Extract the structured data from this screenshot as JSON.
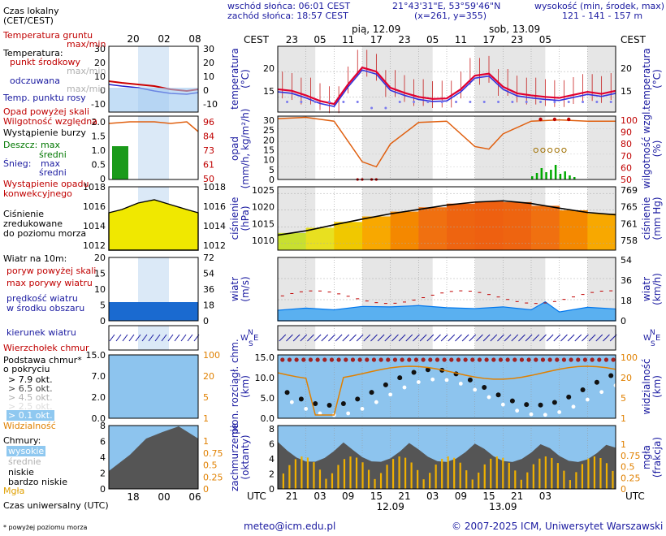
{
  "header": {
    "sunrise": "wschód słońca: 06:01 CEST",
    "sunset": "zachód słońca: 18:57 CEST",
    "coords": "21°43'31\"E, 53°59'46\"N",
    "grid": "(x=261, y=355)",
    "elev_label": "wysokość (min, środek, max)",
    "elev_values": "121 - 141 - 157 m"
  },
  "left_legend": {
    "local_time": "Czas lokalny",
    "local_time_zone": "(CET/CEST)",
    "ground_temp": "Temperatura gruntu",
    "ground_temp_mm": "max/min",
    "temperature": "Temperatura:",
    "mid_point": "punkt środkowy",
    "max_min": "max/min",
    "felt": "odczuwana",
    "felt_mm": "max/min",
    "dew": "Temp. punktu rosy",
    "precip_above": "Opad powyżej skali",
    "humidity": "Wilgotność względna",
    "storm": "Wystąpienie burzy",
    "rain": "Deszcz:",
    "rain_max": "max",
    "rain_mean": "średni",
    "snow": "Śnieg:",
    "snow_max": "max",
    "snow_mean": "średni",
    "conv": "Wystąpienie opadu",
    "conv2": "konwekcyjnego",
    "pressure1": "Ciśnienie",
    "pressure2": "zredukowane",
    "pressure3": "do poziomu morza",
    "wind_at": "Wiatr na 10m:",
    "gust_above": "poryw powyżej skali",
    "gust_max": "max porywy wiatru",
    "wind_speed": "prędkość wiatru",
    "wind_speed2": "w środku obszaru",
    "wind_dir": "kierunek wiatru",
    "shear": "Wierzchołek chmur",
    "cloud_base": "Podstawa chmur*",
    "cloud_cover": "o pokryciu",
    "okt_79": "> 7.9 okt.",
    "okt_65": "> 6.5 okt.",
    "okt_45": "> 4.5 okt.",
    "okt_25": "> 2.5 okt.",
    "okt_01": "> 0.1 okt.",
    "visibility": "Widzialność",
    "clouds": "Chmury:",
    "high": "wysokie",
    "mid": "średnie",
    "low": "niskie",
    "very_low": "bardzo niskie",
    "fog": "Mgła",
    "utc": "Czas uniwersalny (UTC)",
    "footnote": "* powyżej poziomu morza"
  },
  "left_axes": {
    "local_hours": [
      "20",
      "02",
      "08"
    ],
    "utc_hours": [
      "18",
      "00",
      "06"
    ],
    "temp_ticks": [
      "30",
      "20",
      "10",
      "0",
      "-10"
    ],
    "temp_ticks_r": [
      "30",
      "20",
      "10",
      "0",
      "-10"
    ],
    "precip_ticks": [
      "2.0",
      "1.5",
      "1.0",
      "0.5",
      "0"
    ],
    "hum_ticks": [
      "96",
      "84",
      "73",
      "61",
      "50"
    ],
    "pres_ticks": [
      "1018",
      "1016",
      "1014",
      "1012"
    ],
    "pres_ticks_r": [
      "1018",
      "1016",
      "1014",
      "1012"
    ],
    "wind_ticks": [
      "20",
      "15",
      "10",
      "5",
      "0"
    ],
    "wind_ticks_r": [
      "72",
      "54",
      "36",
      "18",
      "0"
    ],
    "cb_ticks": [
      "15.0",
      "7.0",
      "2.0",
      "0.0"
    ],
    "vis_ticks": [
      "100",
      "20",
      "5",
      "1"
    ],
    "cl_ticks": [
      "8",
      "6",
      "4",
      "2",
      "0"
    ],
    "cl_ticks_r": [
      "1",
      "0.75",
      "0.5",
      "0.25",
      "0"
    ]
  },
  "main_axes": {
    "cest_label": "CEST",
    "utc_label": "UTC",
    "day1": "pią, 12.09",
    "day2": "sob, 13.09",
    "local_hours": [
      "23",
      "05",
      "11",
      "17",
      "23",
      "05",
      "11",
      "17",
      "23",
      "05"
    ],
    "utc_hours": [
      "21",
      "03",
      "09",
      "15",
      "21",
      "03",
      "09",
      "15",
      "21",
      "03"
    ],
    "date_bottom_1": "12.09",
    "date_bottom_2": "13.09"
  },
  "panel_labels": {
    "temp_l": "temperatura",
    "temp_l2": "(°C)",
    "temp_r": "temperatura",
    "temp_r2": "(°C)",
    "precip_l": "opad",
    "precip_l2": "(mm/h, kg/m²/h)",
    "precip_r": "wilgotność wzgl.",
    "precip_r2": "(%)",
    "pres_l": "ciśnienie",
    "pres_l2": "(hPa)",
    "pres_r": "ciśnienie",
    "pres_r2": "(mm Hg)",
    "wind_l": "wiatr",
    "wind_l2": "(m/s)",
    "wind_r": "wiatr",
    "wind_r2": "(km/h)",
    "cb_l": "pion. rozciągł. chm.",
    "cb_l2": "(km)",
    "cb_r": "widzialność",
    "cb_r2": "(km)",
    "cl_l": "zachmurzenie",
    "cl_l2": "(oktanty)",
    "cl_r": "mgła",
    "cl_r2": "(frakcja)",
    "compass_n": "N",
    "compass_w": "W",
    "compass_e": "E",
    "compass_s": "S"
  },
  "main_ticks": {
    "temp": [
      "20",
      "15"
    ],
    "precip_l": [
      "30",
      "25",
      "20",
      "15",
      "10",
      "5",
      "0"
    ],
    "precip_r": [
      "100",
      "90",
      "80",
      "70",
      "60",
      "50"
    ],
    "pres_l": [
      "1025",
      "1020",
      "1015",
      "1010"
    ],
    "pres_r": [
      "769",
      "765",
      "761",
      "758"
    ],
    "wind_r": [
      "54",
      "36",
      "18",
      "0"
    ],
    "cb_l": [
      "15.0",
      "10.0",
      "5.0",
      "0.0"
    ],
    "cb_r": [
      "100",
      "20",
      "5",
      "1"
    ],
    "cl_l": [
      "8",
      "6",
      "4",
      "2",
      "0"
    ],
    "cl_r": [
      "1",
      "0.75",
      "0.5",
      "0.25",
      "0"
    ]
  },
  "footer": {
    "email": "meteo@icm.edu.pl",
    "copyright": "© 2007-2025 ICM, Uniwersytet Warszawski"
  },
  "colors": {
    "temp": "#e00030",
    "felt": "#3333dd",
    "dew": "#7a7aee",
    "humidity": "#e06010",
    "rain": "#00aa00",
    "pressure_line": "#000000",
    "wind_fill": "#0077ee",
    "night_shade": "#e6e6e6"
  },
  "chart_data": [
    {
      "type": "line",
      "title": "temperatura",
      "ylabel": "temperatura (°C)",
      "x": [
        0,
        3,
        6,
        9,
        12,
        15,
        18,
        21,
        24,
        27,
        30,
        33,
        36,
        39,
        42,
        45,
        48,
        51,
        54,
        57,
        60,
        63,
        66,
        69,
        72
      ],
      "series": [
        {
          "values": [
            16.5,
            16.2,
            15.3,
            14.2,
            13.6,
            17.5,
            20.8,
            20.0,
            16.8,
            15.8,
            15.0,
            14.6,
            14.7,
            16.5,
            19.2,
            19.6,
            17.0,
            15.7,
            15.3,
            15.0,
            14.8,
            15.4,
            16.0,
            15.6,
            16.2
          ]
        }
      ],
      "ylim": [
        12,
        25
      ]
    },
    {
      "type": "line",
      "title": "wilgotność wzgl.",
      "ylabel": "wilgotność wzgl. (%)",
      "x": [
        0,
        6,
        12,
        18,
        21,
        24,
        30,
        36,
        42,
        45,
        48,
        54,
        60,
        66,
        72
      ],
      "series": [
        {
          "values": [
            98,
            99,
            96,
            64,
            60,
            78,
            95,
            96,
            76,
            74,
            86,
            96,
            97,
            96,
            96
          ]
        }
      ],
      "ylim": [
        50,
        100
      ]
    },
    {
      "type": "line",
      "title": "ciśnienie",
      "ylabel": "ciśnienie (hPa)",
      "x": [
        0,
        6,
        12,
        18,
        24,
        30,
        36,
        42,
        48,
        54,
        60,
        66,
        72
      ],
      "series": [
        {
          "values": [
            1012.5,
            1013.8,
            1015.6,
            1017.3,
            1018.9,
            1020.2,
            1021.5,
            1022.4,
            1022.8,
            1022.0,
            1020.6,
            1019.3,
            1018.6
          ]
        }
      ],
      "ylim": [
        1008,
        1027
      ]
    },
    {
      "type": "area",
      "title": "wiatr",
      "ylabel": "wiatr (m/s)",
      "x": [
        0,
        6,
        12,
        18,
        24,
        30,
        36,
        42,
        48,
        54,
        57,
        60,
        66,
        72
      ],
      "series": [
        {
          "values": [
            2.5,
            3.0,
            2.6,
            3.4,
            3.3,
            3.6,
            3.1,
            2.9,
            3.3,
            2.6,
            4.5,
            2.1,
            3.2,
            2.8
          ]
        },
        {
          "values": [
            6.0,
            6.5,
            6.8,
            7.5,
            7.8,
            7.0,
            6.6,
            6.0,
            5.8,
            5.5,
            6.5,
            5.5,
            5.8,
            6.0
          ]
        }
      ],
      "ylim": [
        0,
        15
      ]
    }
  ]
}
